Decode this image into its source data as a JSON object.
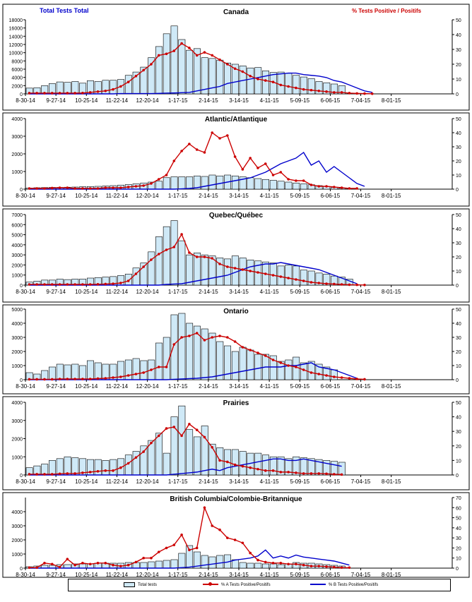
{
  "header": {
    "left_title": "Total Tests Total",
    "right_title": "% Tests Positive / Positifs"
  },
  "colors": {
    "bars_fill": "#cfe9f7",
    "bars_stroke": "#000000",
    "positive_line": "#cc0000",
    "b_line": "#0000cc"
  },
  "legend": {
    "bars": "Total tests",
    "positive": "% A Tests Positive/Positifs",
    "b_positive": "% B Tests Positive/Positifs"
  },
  "chart_data": [
    {
      "type": "bar",
      "title": "Canada",
      "categories": [
        "8-30-14",
        "9-27-14",
        "10-25-14",
        "11-22-14",
        "12-20-14",
        "1-17-15",
        "2-14-15",
        "3-14-15",
        "4-11-15",
        "5-09-15",
        "6-06-15",
        "7-04-15",
        "8-01-15"
      ],
      "bars_left_max": 18000,
      "bars_left_ticks": [
        0,
        2000,
        4000,
        6000,
        8000,
        10000,
        12000,
        14000,
        16000,
        18000
      ],
      "right_max": 50,
      "right_ticks": [
        0,
        10,
        20,
        30,
        40,
        50
      ],
      "bars": [
        1400,
        1500,
        2000,
        2500,
        2900,
        2800,
        3000,
        2600,
        3200,
        3000,
        3300,
        3300,
        3500,
        4500,
        5300,
        6500,
        8800,
        11500,
        14600,
        16500,
        13200,
        10600,
        11000,
        8800,
        8600,
        8200,
        7500,
        7200,
        6800,
        6300,
        6400,
        5600,
        5200,
        5300,
        5000,
        4500,
        4100,
        3700,
        3000,
        2700,
        2400,
        2000
      ],
      "positive": [
        0.5,
        0.5,
        0.5,
        0.5,
        0.5,
        0.5,
        0.5,
        0.6,
        1,
        1.5,
        2,
        3,
        5,
        8,
        12,
        16,
        20,
        26,
        27,
        29,
        34,
        31,
        26,
        28,
        26,
        23,
        20,
        17,
        15,
        12,
        10,
        9,
        8,
        6,
        5,
        4,
        3,
        2.5,
        2,
        1.5,
        1,
        1,
        0.5,
        0.3,
        0.2,
        0.1
      ],
      "b_positive": [
        0,
        0,
        0,
        0,
        0,
        0,
        0,
        0,
        0,
        0,
        0,
        0,
        0.2,
        0.2,
        0.2,
        0.2,
        0.2,
        0.3,
        0.5,
        0.6,
        0.8,
        1,
        2,
        3,
        4,
        5,
        7,
        8,
        9,
        10,
        11,
        12,
        13,
        13.5,
        14,
        14,
        13,
        12.5,
        12,
        11,
        9,
        8,
        6,
        4,
        2,
        1
      ]
    },
    {
      "type": "bar",
      "title": "Atlantic/Atlantique",
      "categories": [
        "8-30-14",
        "9-27-14",
        "10-25-14",
        "11-22-14",
        "12-20-14",
        "1-17-15",
        "2-14-15",
        "3-14-15",
        "4-11-15",
        "5-09-15",
        "6-06-15",
        "7-04-15",
        "8-01-15"
      ],
      "bars_left_max": 4000,
      "bars_left_ticks": [
        0,
        1000,
        2000,
        3000,
        4000
      ],
      "right_max": 50,
      "right_ticks": [
        0,
        10,
        20,
        30,
        40,
        50
      ],
      "bars": [
        60,
        80,
        90,
        100,
        100,
        110,
        120,
        140,
        150,
        160,
        180,
        200,
        230,
        260,
        300,
        350,
        400,
        450,
        650,
        700,
        700,
        700,
        750,
        720,
        800,
        750,
        800,
        750,
        700,
        650,
        600,
        550,
        500,
        450,
        400,
        350,
        300,
        250,
        200,
        150,
        100,
        50
      ],
      "positive": [
        0.5,
        0.5,
        0.5,
        0.8,
        1,
        1,
        0.5,
        0.5,
        0.5,
        0.5,
        1,
        1,
        1,
        1.5,
        2,
        2.5,
        4,
        7,
        10,
        20,
        27,
        32,
        28,
        26,
        40,
        36,
        38,
        23,
        14,
        22,
        15,
        18,
        10,
        12,
        7,
        6,
        6,
        3,
        2,
        2,
        1.5,
        1,
        0.5,
        0.5
      ],
      "b_positive": [
        0,
        0,
        0,
        0,
        0,
        0,
        0,
        0,
        0,
        0,
        0,
        0,
        0,
        0,
        0,
        0,
        0,
        0,
        0,
        0,
        0.2,
        0.5,
        1,
        2,
        3,
        4,
        5,
        6,
        7,
        8,
        10,
        12,
        15,
        18,
        20,
        22,
        26,
        17,
        20,
        12,
        16,
        12,
        8,
        4,
        2
      ]
    },
    {
      "type": "bar",
      "title": "Quebec/Québec",
      "categories": [
        "8-30-14",
        "9-27-14",
        "10-25-14",
        "11-22-14",
        "12-20-14",
        "1-17-15",
        "2-14-15",
        "3-14-15",
        "4-11-15",
        "5-09-15",
        "6-06-15",
        "7-04-15",
        "8-01-15"
      ],
      "bars_left_max": 7000,
      "bars_left_ticks": [
        0,
        1000,
        2000,
        3000,
        4000,
        5000,
        6000,
        7000
      ],
      "right_max": 50,
      "right_ticks": [
        0,
        10,
        20,
        30,
        40,
        50
      ],
      "bars": [
        300,
        400,
        500,
        500,
        600,
        550,
        600,
        600,
        700,
        750,
        800,
        850,
        950,
        1100,
        1700,
        2200,
        3300,
        4800,
        5800,
        6400,
        4400,
        3000,
        3200,
        3000,
        2900,
        2700,
        2600,
        2900,
        2700,
        2500,
        2400,
        2300,
        2200,
        1900,
        2000,
        1900,
        1500,
        1400,
        1200,
        1100,
        900,
        800,
        600
      ],
      "positive": [
        0.5,
        0.5,
        0.5,
        0.5,
        0.5,
        0.5,
        0.5,
        0.5,
        0.5,
        0.6,
        0.8,
        1,
        1.5,
        3,
        8,
        13,
        18,
        22,
        25,
        27,
        36,
        23,
        20,
        20,
        19,
        15,
        13,
        12,
        11,
        10,
        9,
        8,
        7,
        6,
        5,
        4,
        3,
        2,
        1.5,
        1,
        0.8,
        0.5,
        0.3,
        0.2,
        0.1
      ],
      "b_positive": [
        0,
        0,
        0,
        0,
        0,
        0,
        0,
        0,
        0,
        0,
        0,
        0,
        0,
        0,
        0,
        0,
        0,
        0,
        0.5,
        0.8,
        1,
        2,
        3,
        4,
        5,
        6,
        7,
        9,
        11,
        13,
        14,
        15,
        15,
        16,
        15,
        14,
        13,
        12,
        11,
        9,
        7,
        5,
        3,
        1
      ]
    },
    {
      "type": "bar",
      "title": "Ontario",
      "categories": [
        "8-30-14",
        "9-27-14",
        "10-25-14",
        "11-22-14",
        "12-20-14",
        "1-17-15",
        "2-14-15",
        "3-14-15",
        "4-11-15",
        "5-09-15",
        "6-06-15",
        "7-04-15",
        "8-01-15"
      ],
      "bars_left_max": 5000,
      "bars_left_ticks": [
        0,
        1000,
        2000,
        3000,
        4000,
        5000
      ],
      "right_max": 50,
      "right_ticks": [
        0,
        10,
        20,
        30,
        40,
        50
      ],
      "bars": [
        500,
        400,
        650,
        900,
        1100,
        1050,
        1100,
        1000,
        1350,
        1200,
        1100,
        1100,
        1300,
        1400,
        1500,
        1350,
        1400,
        2600,
        3000,
        4600,
        4700,
        4000,
        3800,
        3600,
        3300,
        2700,
        2400,
        2000,
        2300,
        2100,
        1800,
        1800,
        1700,
        1300,
        1400,
        1600,
        1200,
        1300,
        1100,
        900,
        700
      ],
      "positive": [
        0.3,
        0.3,
        0.3,
        0.3,
        0.5,
        0.5,
        0.5,
        0.5,
        0.5,
        0.8,
        1,
        1.5,
        2,
        3,
        4,
        5,
        7,
        9,
        9,
        25,
        30,
        31,
        33,
        28,
        30,
        31,
        30,
        27,
        23,
        21,
        19,
        17,
        14,
        12,
        10,
        9,
        7,
        5,
        4,
        3,
        2,
        1.5,
        1,
        0.5,
        0.3
      ],
      "b_positive": [
        0,
        0,
        0,
        0,
        0,
        0,
        0,
        0,
        0,
        0,
        0,
        0,
        0,
        0,
        0,
        0,
        0,
        0,
        0,
        0.3,
        0.5,
        0.8,
        1,
        1.5,
        2,
        3,
        4,
        5,
        6,
        7,
        8,
        9,
        9,
        9,
        10,
        10,
        11,
        12,
        9,
        8,
        7,
        5,
        3,
        1
      ]
    },
    {
      "type": "bar",
      "title": "Prairies",
      "categories": [
        "8-30-14",
        "9-27-14",
        "10-25-14",
        "11-22-14",
        "12-20-14",
        "1-17-15",
        "2-14-15",
        "3-14-15",
        "4-11-15",
        "5-09-15",
        "6-06-15",
        "7-04-15",
        "8-01-15"
      ],
      "bars_left_max": 4000,
      "bars_left_ticks": [
        0,
        1000,
        2000,
        3000,
        4000
      ],
      "right_max": 50,
      "right_ticks": [
        0,
        10,
        20,
        30,
        40,
        50
      ],
      "bars": [
        400,
        500,
        600,
        800,
        900,
        1000,
        950,
        900,
        850,
        850,
        800,
        850,
        900,
        1100,
        1300,
        1600,
        1900,
        2300,
        1200,
        3200,
        3800,
        2500,
        2100,
        2700,
        1700,
        1500,
        1400,
        1400,
        1300,
        1200,
        1200,
        1100,
        1000,
        1000,
        900,
        1000,
        950,
        900,
        850,
        800,
        750,
        700
      ],
      "positive": [
        0.5,
        0.5,
        0.5,
        0.5,
        0.8,
        1,
        1,
        1.5,
        2,
        2.5,
        3,
        3,
        5,
        8,
        12,
        16,
        22,
        27,
        32,
        33,
        27,
        35,
        31,
        26,
        19,
        10,
        9,
        7,
        6,
        5,
        4,
        3,
        3,
        2,
        2,
        1.5,
        1,
        1,
        1,
        0.8,
        0.5,
        0.3
      ],
      "b_positive": [
        0,
        0,
        0,
        0,
        0,
        0,
        0,
        0,
        0,
        0,
        0,
        0,
        0,
        0,
        0,
        0,
        0,
        0,
        0,
        0.5,
        1,
        1.5,
        2,
        3,
        4,
        3,
        5,
        6,
        7,
        8,
        9,
        10,
        11,
        11,
        10,
        10,
        11,
        10,
        9,
        8,
        7,
        6
      ]
    },
    {
      "type": "bar",
      "title": "British Columbia/Colombie-Britannique",
      "categories": [
        "8-30-14",
        "9-27-14",
        "10-25-14",
        "11-22-14",
        "12-20-14",
        "1-17-15",
        "2-14-15",
        "3-14-15",
        "4-11-15",
        "5-09-15",
        "6-06-15",
        "7-04-15",
        "8-01-15"
      ],
      "bars_left_max": 5000,
      "bars_left_ticks": [
        0,
        1000,
        2000,
        3000,
        4000
      ],
      "right_max": 70,
      "right_ticks": [
        0,
        10,
        20,
        30,
        40,
        50,
        60,
        70
      ],
      "bars": [
        100,
        150,
        200,
        200,
        250,
        250,
        300,
        300,
        300,
        350,
        350,
        350,
        350,
        400,
        400,
        400,
        450,
        500,
        550,
        600,
        1050,
        1600,
        1150,
        900,
        800,
        900,
        950,
        600,
        400,
        350,
        350,
        300,
        300,
        250,
        300,
        400,
        350,
        350,
        300,
        250,
        200,
        150
      ],
      "positive": [
        0.5,
        0.5,
        5,
        4,
        1,
        9,
        3,
        5,
        4,
        5,
        5,
        3,
        2,
        3,
        6,
        10,
        10,
        16,
        20,
        23,
        33,
        18,
        20,
        60,
        42,
        38,
        30,
        28,
        25,
        15,
        8,
        6,
        5,
        5,
        4,
        4,
        3,
        2,
        2,
        1.5,
        1,
        0.5,
        0.5
      ],
      "b_positive": [
        0,
        0,
        0,
        0,
        0,
        0,
        0,
        0,
        0,
        0,
        0,
        0,
        0,
        0,
        0,
        0,
        0,
        0,
        0,
        0,
        0.5,
        1,
        2,
        3,
        4,
        5,
        6,
        8,
        9,
        10,
        12,
        18,
        10,
        12,
        10,
        13,
        11,
        10,
        9,
        8,
        7,
        5,
        3
      ]
    }
  ]
}
